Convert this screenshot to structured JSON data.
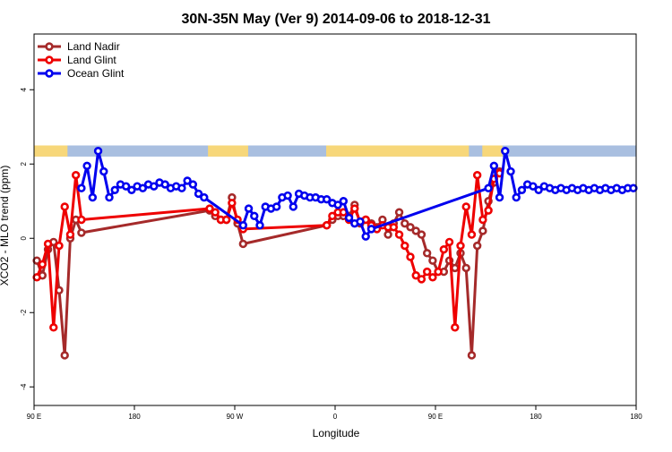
{
  "chart_data": {
    "type": "line",
    "title": "30N-35N May (Ver 9)   2014-09-06 to 2018-12-31",
    "xlabel": "Longitude",
    "ylabel": "XCO2 - MLO trend (ppm)",
    "xlim": [
      0,
      540
    ],
    "ylim": [
      -4.5,
      5.5
    ],
    "x_ticks": [
      {
        "x": 0,
        "label": "90 E"
      },
      {
        "x": 90,
        "label": "180"
      },
      {
        "x": 180,
        "label": "90 W"
      },
      {
        "x": 270,
        "label": "0"
      },
      {
        "x": 360,
        "label": "90 E"
      },
      {
        "x": 450,
        "label": "180"
      }
    ],
    "y_ticks": [
      {
        "y": -4,
        "label": "-4"
      },
      {
        "y": -2,
        "label": "-2"
      },
      {
        "y": 0,
        "label": "0"
      },
      {
        "y": 2,
        "label": "2"
      },
      {
        "y": 4,
        "label": "4"
      }
    ],
    "legend_position": "top-left",
    "grid": false,
    "landmask": {
      "y_range": [
        2.2,
        2.5
      ],
      "land_color": "#f7d77a",
      "ocean_color": "#a9bfe0",
      "land_intervals": [
        [
          0,
          30
        ],
        [
          156,
          192
        ],
        [
          262,
          390
        ],
        [
          402,
          420
        ]
      ]
    },
    "series": [
      {
        "name": "Land Nadir",
        "color": "#a52a2a",
        "x": [
          2.5,
          7.5,
          12.5,
          17.5,
          22.5,
          27.5,
          32.5,
          37.5,
          42.5,
          157.5,
          162.5,
          167.5,
          172.5,
          177.5,
          182.5,
          187.5,
          262.5,
          267.5,
          272.5,
          277.5,
          282.5,
          287.5,
          292.5,
          297.5,
          302.5,
          307.5,
          312.5,
          317.5,
          322.5,
          327.5,
          332.5,
          337.5,
          342.5,
          347.5,
          352.5,
          357.5,
          362.5,
          367.5,
          372.5,
          377.5,
          382.5,
          387.5,
          392.5,
          397.5,
          402.5,
          407.5,
          412.5,
          417.5
        ],
        "y": [
          -0.6,
          -1.0,
          -0.3,
          -0.1,
          -1.4,
          -3.15,
          0.0,
          0.5,
          0.15,
          0.75,
          0.6,
          0.5,
          0.5,
          1.1,
          0.4,
          -0.15,
          0.35,
          0.5,
          0.6,
          0.6,
          0.6,
          0.9,
          0.4,
          0.5,
          0.4,
          0.3,
          0.5,
          0.1,
          0.4,
          0.7,
          0.4,
          0.3,
          0.2,
          0.1,
          -0.4,
          -0.6,
          -0.9,
          -0.9,
          -0.6,
          -0.8,
          -0.4,
          -0.8,
          -3.15,
          -0.2,
          0.2,
          1.0,
          1.5,
          1.8
        ]
      },
      {
        "name": "Land Glint",
        "color": "#ee0000",
        "x": [
          2.5,
          7.5,
          12.5,
          17.5,
          22.5,
          27.5,
          32.5,
          37.5,
          42.5,
          157.5,
          162.5,
          167.5,
          172.5,
          177.5,
          182.5,
          187.5,
          262.5,
          267.5,
          272.5,
          277.5,
          282.5,
          287.5,
          292.5,
          297.5,
          302.5,
          307.5,
          312.5,
          317.5,
          322.5,
          327.5,
          332.5,
          337.5,
          342.5,
          347.5,
          352.5,
          357.5,
          362.5,
          367.5,
          372.5,
          377.5,
          382.5,
          387.5,
          392.5,
          397.5,
          402.5,
          407.5,
          412.5,
          417.5
        ],
        "y": [
          -1.05,
          -0.7,
          -0.15,
          -2.4,
          -0.2,
          0.85,
          0.1,
          1.7,
          0.5,
          0.8,
          0.7,
          0.5,
          0.5,
          0.95,
          0.5,
          0.25,
          0.35,
          0.6,
          0.7,
          0.7,
          0.5,
          0.8,
          0.45,
          0.5,
          0.35,
          0.25,
          0.35,
          0.3,
          0.3,
          0.1,
          -0.2,
          -0.5,
          -1.0,
          -1.1,
          -0.9,
          -1.05,
          -0.9,
          -0.3,
          -0.1,
          -2.4,
          -0.2,
          0.85,
          0.1,
          1.7,
          0.5,
          0.75,
          1.6,
          1.75
        ]
      },
      {
        "name": "Ocean Glint",
        "color": "#0000ee",
        "x": [
          42.5,
          47.5,
          52.5,
          57.5,
          62.5,
          67.5,
          72.5,
          77.5,
          82.5,
          87.5,
          92.5,
          97.5,
          102.5,
          107.5,
          112.5,
          117.5,
          122.5,
          127.5,
          132.5,
          137.5,
          142.5,
          147.5,
          152.5,
          187.5,
          192.5,
          197.5,
          202.5,
          207.5,
          212.5,
          217.5,
          222.5,
          227.5,
          232.5,
          237.5,
          242.5,
          247.5,
          252.5,
          257.5,
          262.5,
          267.5,
          272.5,
          277.5,
          282.5,
          287.5,
          292.5,
          297.5,
          302.5,
          407.5,
          412.5,
          417.5,
          422.5,
          427.5,
          432.5,
          437.5,
          442.5,
          447.5,
          452.5,
          457.5,
          462.5,
          467.5,
          472.5,
          477.5,
          482.5,
          487.5,
          492.5,
          497.5,
          502.5,
          507.5,
          512.5,
          517.5,
          522.5,
          527.5,
          532.5,
          537.5
        ],
        "y": [
          1.35,
          1.95,
          1.1,
          2.35,
          1.8,
          1.1,
          1.3,
          1.45,
          1.4,
          1.3,
          1.4,
          1.35,
          1.45,
          1.4,
          1.5,
          1.45,
          1.35,
          1.4,
          1.35,
          1.55,
          1.45,
          1.2,
          1.1,
          0.35,
          0.8,
          0.6,
          0.35,
          0.85,
          0.8,
          0.85,
          1.1,
          1.15,
          0.85,
          1.2,
          1.15,
          1.1,
          1.1,
          1.05,
          1.05,
          0.95,
          0.9,
          1.0,
          0.55,
          0.4,
          0.45,
          0.05,
          0.25,
          1.35,
          1.95,
          1.1,
          2.35,
          1.8,
          1.1,
          1.3,
          1.45,
          1.4,
          1.3,
          1.4,
          1.35,
          1.3,
          1.35,
          1.3,
          1.35,
          1.3,
          1.35,
          1.3,
          1.35,
          1.3,
          1.35,
          1.3,
          1.35,
          1.3,
          1.35,
          1.35
        ]
      }
    ]
  }
}
